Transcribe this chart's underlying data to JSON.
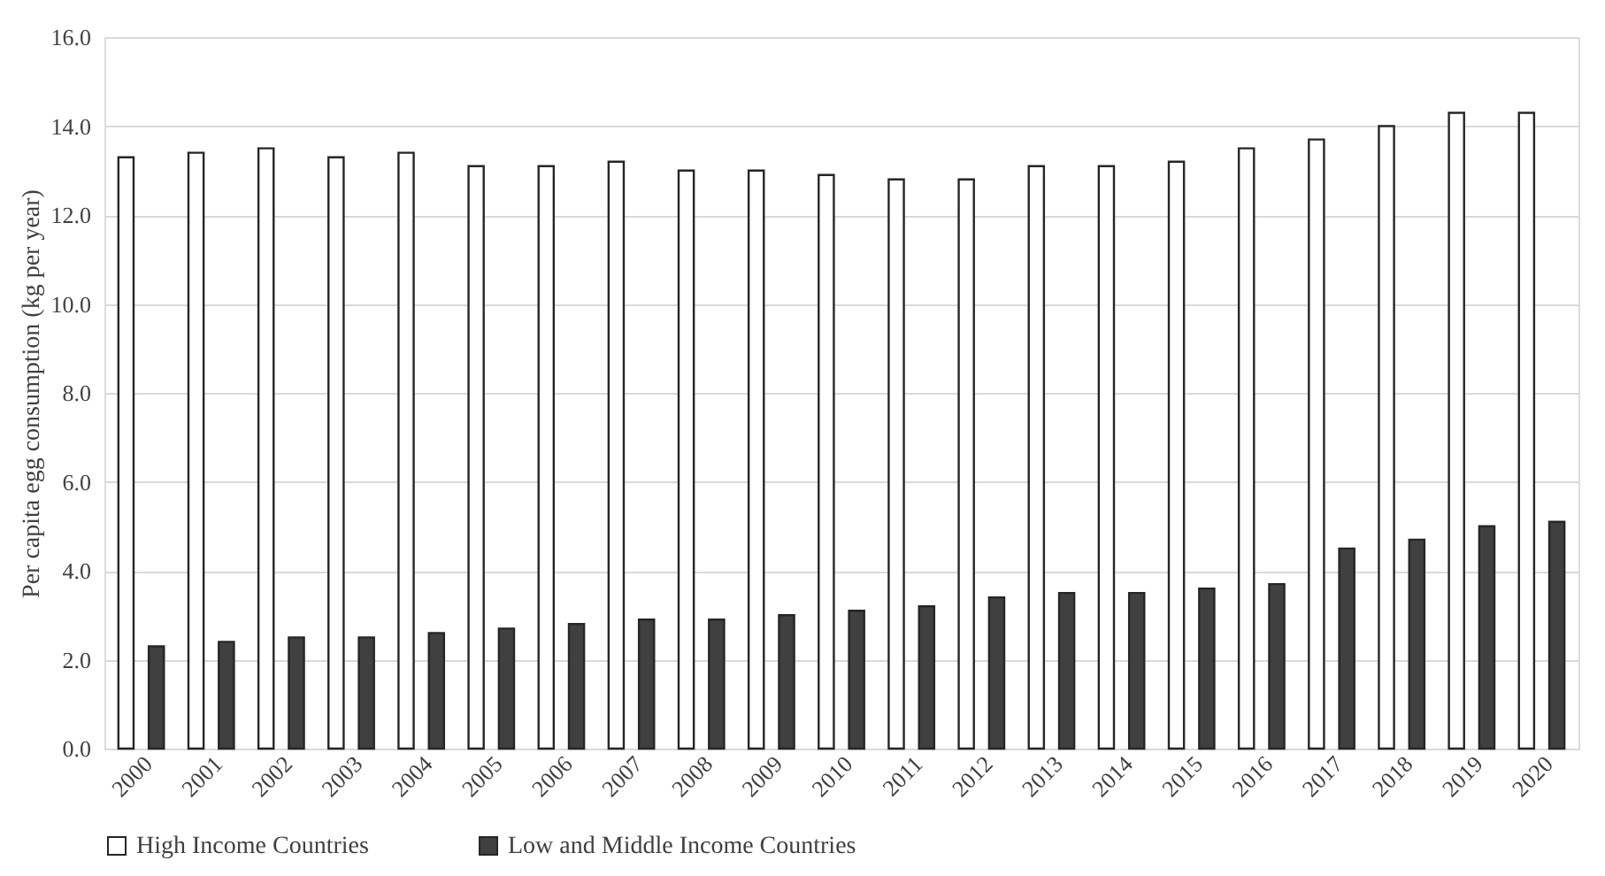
{
  "chart_data": {
    "type": "bar",
    "ylabel": "Per capita egg consumption (kg per year)",
    "categories": [
      "2000",
      "2001",
      "2002",
      "2003",
      "2004",
      "2005",
      "2006",
      "2007",
      "2008",
      "2009",
      "2010",
      "2011",
      "2012",
      "2013",
      "2014",
      "2015",
      "2016",
      "2017",
      "2018",
      "2019",
      "2020"
    ],
    "series": [
      {
        "name": "High Income Countries",
        "color": "#ffffff",
        "values": [
          13.3,
          13.4,
          13.5,
          13.3,
          13.4,
          13.1,
          13.1,
          13.2,
          13.0,
          13.0,
          12.9,
          12.8,
          12.8,
          13.1,
          13.1,
          13.2,
          13.5,
          13.7,
          14.0,
          14.3,
          14.3
        ]
      },
      {
        "name": "Low and Middle Income Countries",
        "color": "#404040",
        "values": [
          2.3,
          2.4,
          2.5,
          2.5,
          2.6,
          2.7,
          2.8,
          2.9,
          2.9,
          3.0,
          3.1,
          3.2,
          3.4,
          3.5,
          3.5,
          3.6,
          3.7,
          4.5,
          4.7,
          5.0,
          5.1
        ]
      }
    ],
    "ylim": [
      0,
      16
    ],
    "yticks": [
      {
        "value": 0,
        "label": "0.0"
      },
      {
        "value": 2,
        "label": "2.0"
      },
      {
        "value": 4,
        "label": "4.0"
      },
      {
        "value": 6,
        "label": "6.0"
      },
      {
        "value": 8,
        "label": "8.0"
      },
      {
        "value": 10,
        "label": "10.0"
      },
      {
        "value": 12,
        "label": "12.0"
      },
      {
        "value": 14,
        "label": "14.0"
      },
      {
        "value": 16,
        "label": "16.0"
      }
    ],
    "grid": "y",
    "legend": "bottom"
  }
}
